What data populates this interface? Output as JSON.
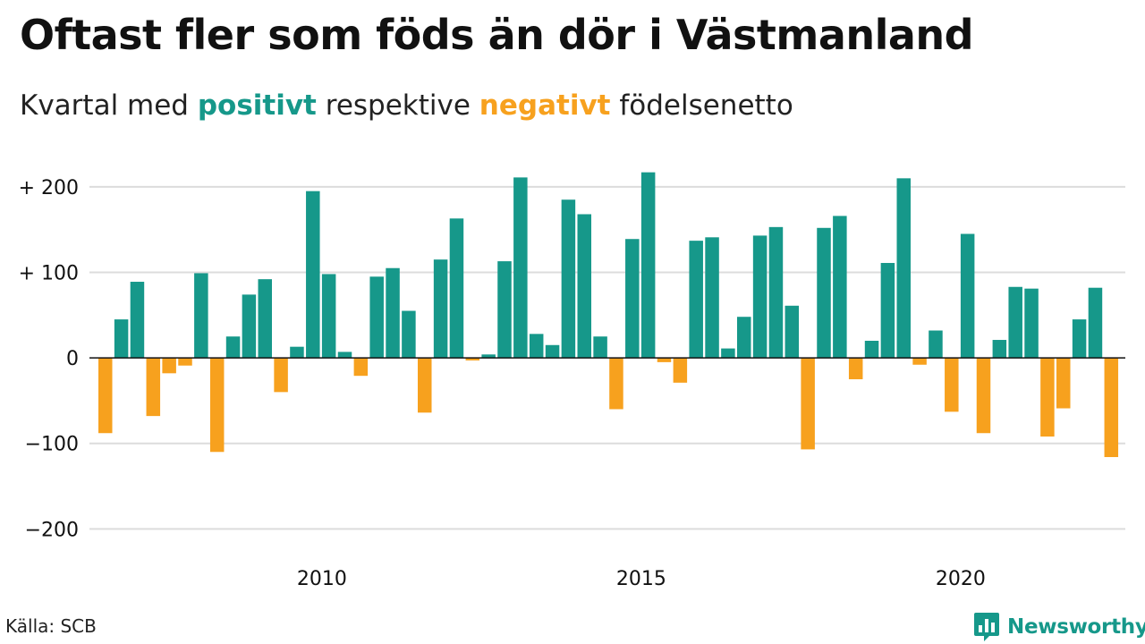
{
  "title": "Oftast fler som föds än dör i Västmanland",
  "subtitle": {
    "prefix": "Kvartal med",
    "positive_word": "positivt",
    "middle": "respektive",
    "negative_word": "negativt",
    "suffix": "födelsenetto"
  },
  "source": "Källa: SCB",
  "brand": {
    "name": "Newsworthy",
    "icon": "bar-chart-speech-bubble-icon"
  },
  "colors": {
    "positive": "#16988a",
    "negative": "#f7a11e",
    "grid": "#dcdcdc",
    "zero": "#111111",
    "text": "#111111"
  },
  "chart_data": {
    "type": "bar",
    "ylim": [
      -230,
      225
    ],
    "yticks": [
      {
        "value": 200,
        "label": "+ 200"
      },
      {
        "value": 100,
        "label": "+ 100"
      },
      {
        "value": 0,
        "label": "0"
      },
      {
        "value": -100,
        "label": "−100"
      },
      {
        "value": -200,
        "label": "−200"
      }
    ],
    "xticks": [
      {
        "value": 2010,
        "label": "2010"
      },
      {
        "value": 2015,
        "label": "2015"
      },
      {
        "value": 2020,
        "label": "2020"
      }
    ],
    "grid": true,
    "series": [
      {
        "values": [
          {
            "x": "2007Q1",
            "y": -88
          },
          {
            "x": "2007Q2",
            "y": 45
          },
          {
            "x": "2007Q3",
            "y": 89
          },
          {
            "x": "2007Q4",
            "y": -68
          },
          {
            "x": "2008Q1",
            "y": -18
          },
          {
            "x": "2008Q2",
            "y": -9
          },
          {
            "x": "2008Q3",
            "y": 99
          },
          {
            "x": "2008Q4",
            "y": -110
          },
          {
            "x": "2009Q1",
            "y": 25
          },
          {
            "x": "2009Q2",
            "y": 74
          },
          {
            "x": "2009Q3",
            "y": 92
          },
          {
            "x": "2009Q4",
            "y": -40
          },
          {
            "x": "2010Q1",
            "y": 13
          },
          {
            "x": "2010Q2",
            "y": 195
          },
          {
            "x": "2010Q3",
            "y": 98
          },
          {
            "x": "2010Q4",
            "y": 7
          },
          {
            "x": "2011Q1",
            "y": -21
          },
          {
            "x": "2011Q2",
            "y": 95
          },
          {
            "x": "2011Q3",
            "y": 105
          },
          {
            "x": "2011Q4",
            "y": 55
          },
          {
            "x": "2012Q1",
            "y": -64
          },
          {
            "x": "2012Q2",
            "y": 115
          },
          {
            "x": "2012Q3",
            "y": 163
          },
          {
            "x": "2012Q4",
            "y": -3
          },
          {
            "x": "2013Q1",
            "y": 4
          },
          {
            "x": "2013Q2",
            "y": 113
          },
          {
            "x": "2013Q3",
            "y": 211
          },
          {
            "x": "2013Q4",
            "y": 28
          },
          {
            "x": "2014Q1",
            "y": 15
          },
          {
            "x": "2014Q2",
            "y": 185
          },
          {
            "x": "2014Q3",
            "y": 168
          },
          {
            "x": "2014Q4",
            "y": 25
          },
          {
            "x": "2015Q1",
            "y": -60
          },
          {
            "x": "2015Q2",
            "y": 139
          },
          {
            "x": "2015Q3",
            "y": 217
          },
          {
            "x": "2015Q4",
            "y": -5
          },
          {
            "x": "2016Q1",
            "y": -29
          },
          {
            "x": "2016Q2",
            "y": 137
          },
          {
            "x": "2016Q3",
            "y": 141
          },
          {
            "x": "2016Q4",
            "y": 11
          },
          {
            "x": "2017Q1",
            "y": 48
          },
          {
            "x": "2017Q2",
            "y": 143
          },
          {
            "x": "2017Q3",
            "y": 153
          },
          {
            "x": "2017Q4",
            "y": 61
          },
          {
            "x": "2018Q1",
            "y": -107
          },
          {
            "x": "2018Q2",
            "y": 152
          },
          {
            "x": "2018Q3",
            "y": 166
          },
          {
            "x": "2018Q4",
            "y": -25
          },
          {
            "x": "2019Q1",
            "y": 20
          },
          {
            "x": "2019Q2",
            "y": 111
          },
          {
            "x": "2019Q3",
            "y": 210
          },
          {
            "x": "2019Q4",
            "y": -8
          },
          {
            "x": "2020Q1",
            "y": 32
          },
          {
            "x": "2020Q2",
            "y": -63
          },
          {
            "x": "2020Q3",
            "y": 145
          },
          {
            "x": "2020Q4",
            "y": -88
          },
          {
            "x": "2021Q1",
            "y": 21
          },
          {
            "x": "2021Q2",
            "y": 83
          },
          {
            "x": "2021Q3",
            "y": 81
          },
          {
            "x": "2021Q4",
            "y": -92
          },
          {
            "x": "2022Q1",
            "y": -59
          },
          {
            "x": "2022Q2",
            "y": 45
          },
          {
            "x": "2022Q3",
            "y": 82
          },
          {
            "x": "2022Q4",
            "y": -116
          }
        ]
      }
    ]
  }
}
